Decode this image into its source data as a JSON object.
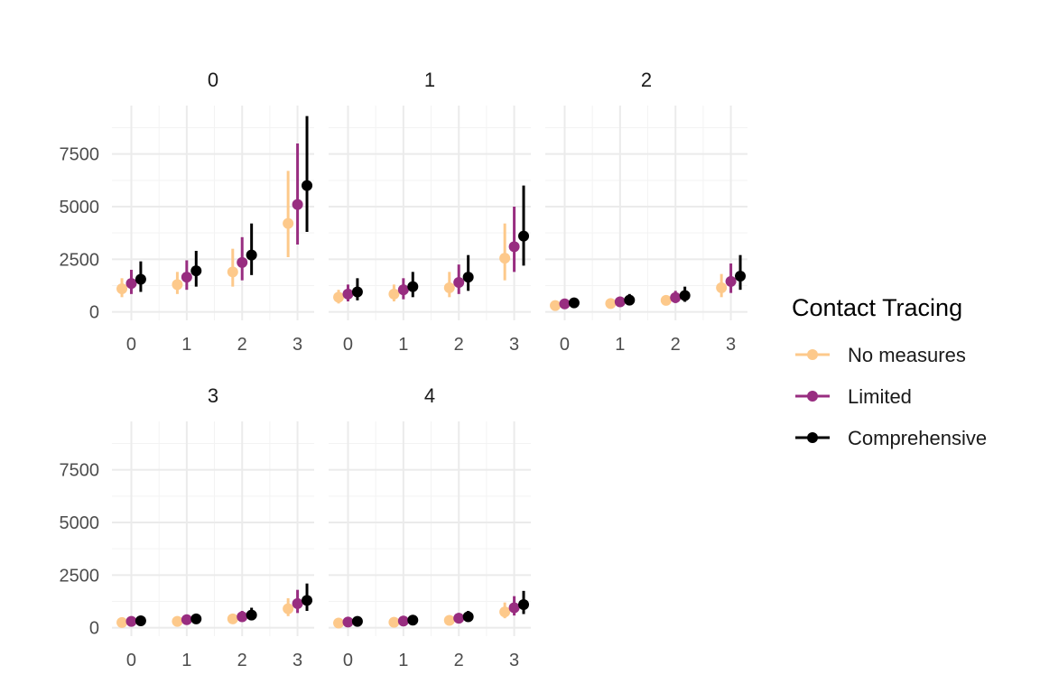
{
  "chart_data": {
    "type": "scatter",
    "subtype": "faceted point-range",
    "facets": [
      {
        "label": "0",
        "x": [
          0,
          1,
          2,
          3
        ],
        "series": [
          {
            "name": "No measures",
            "y": [
              1100,
              1300,
              1900,
              4200
            ],
            "low": [
              700,
              850,
              1200,
              2600
            ],
            "high": [
              1600,
              1900,
              3000,
              6700
            ]
          },
          {
            "name": "Limited",
            "y": [
              1350,
              1650,
              2350,
              5100
            ],
            "low": [
              850,
              1050,
              1500,
              3200
            ],
            "high": [
              2000,
              2450,
              3550,
              8000
            ]
          },
          {
            "name": "Comprehensive",
            "y": [
              1550,
              1950,
              2700,
              6000
            ],
            "low": [
              950,
              1200,
              1750,
              3800
            ],
            "high": [
              2400,
              2900,
              4200,
              9300
            ]
          }
        ]
      },
      {
        "label": "1",
        "x": [
          0,
          1,
          2,
          3
        ],
        "series": [
          {
            "name": "No measures",
            "y": [
              700,
              850,
              1150,
              2550
            ],
            "low": [
              400,
              500,
              700,
              1500
            ],
            "high": [
              1050,
              1300,
              1900,
              4200
            ]
          },
          {
            "name": "Limited",
            "y": [
              850,
              1050,
              1400,
              3100
            ],
            "low": [
              500,
              600,
              850,
              1900
            ],
            "high": [
              1300,
              1600,
              2250,
              5000
            ]
          },
          {
            "name": "Comprehensive",
            "y": [
              950,
              1200,
              1650,
              3600
            ],
            "low": [
              550,
              700,
              1000,
              2200
            ],
            "high": [
              1600,
              1900,
              2700,
              6000
            ]
          }
        ]
      },
      {
        "label": "2",
        "x": [
          0,
          1,
          2,
          3
        ],
        "series": [
          {
            "name": "No measures",
            "y": [
              300,
              400,
              550,
              1150
            ],
            "low": [
              150,
              250,
              350,
              700
            ],
            "high": [
              450,
              600,
              800,
              1800
            ]
          },
          {
            "name": "Limited",
            "y": [
              380,
              480,
              680,
              1450
            ],
            "low": [
              200,
              300,
              420,
              900
            ],
            "high": [
              550,
              720,
              1000,
              2300
            ]
          },
          {
            "name": "Comprehensive",
            "y": [
              430,
              560,
              780,
              1700
            ],
            "low": [
              250,
              330,
              480,
              1050
            ],
            "high": [
              650,
              850,
              1200,
              2700
            ]
          }
        ]
      },
      {
        "label": "3",
        "x": [
          0,
          1,
          2,
          3
        ],
        "series": [
          {
            "name": "No measures",
            "y": [
              250,
              300,
              420,
              900
            ],
            "low": [
              120,
              180,
              250,
              550
            ],
            "high": [
              400,
              470,
              650,
              1400
            ]
          },
          {
            "name": "Limited",
            "y": [
              300,
              380,
              520,
              1150
            ],
            "low": [
              170,
              220,
              300,
              700
            ],
            "high": [
              450,
              580,
              800,
              1800
            ]
          },
          {
            "name": "Comprehensive",
            "y": [
              330,
              420,
              600,
              1300
            ],
            "low": [
              180,
              250,
              350,
              800
            ],
            "high": [
              520,
              650,
              950,
              2100
            ]
          }
        ]
      },
      {
        "label": "4",
        "x": [
          0,
          1,
          2,
          3
        ],
        "series": [
          {
            "name": "No measures",
            "y": [
              220,
              260,
              350,
              750
            ],
            "low": [
              100,
              150,
              200,
              450
            ],
            "high": [
              350,
              420,
              550,
              1200
            ]
          },
          {
            "name": "Limited",
            "y": [
              270,
              320,
              450,
              950
            ],
            "low": [
              140,
              180,
              250,
              580
            ],
            "high": [
              420,
              500,
              700,
              1500
            ]
          },
          {
            "name": "Comprehensive",
            "y": [
              300,
              360,
              520,
              1100
            ],
            "low": [
              160,
              200,
              300,
              650
            ],
            "high": [
              480,
              560,
              800,
              1750
            ]
          }
        ]
      }
    ],
    "x_ticks": [
      "0",
      "1",
      "2",
      "3"
    ],
    "y_ticks": [
      "0",
      "2500",
      "5000",
      "7500"
    ],
    "ylim": [
      -400,
      9800
    ],
    "xlim": [
      -0.35,
      3.3
    ],
    "grid": true,
    "legend": {
      "title": "Contact Tracing",
      "position": "right",
      "entries": [
        "No measures",
        "Limited",
        "Comprehensive"
      ]
    },
    "colors": {
      "No measures": "#fdc98b",
      "Limited": "#982d80",
      "Comprehensive": "#000000"
    },
    "grid_major_color": "#ebebeb",
    "grid_minor_color": "#f3f3f3"
  }
}
